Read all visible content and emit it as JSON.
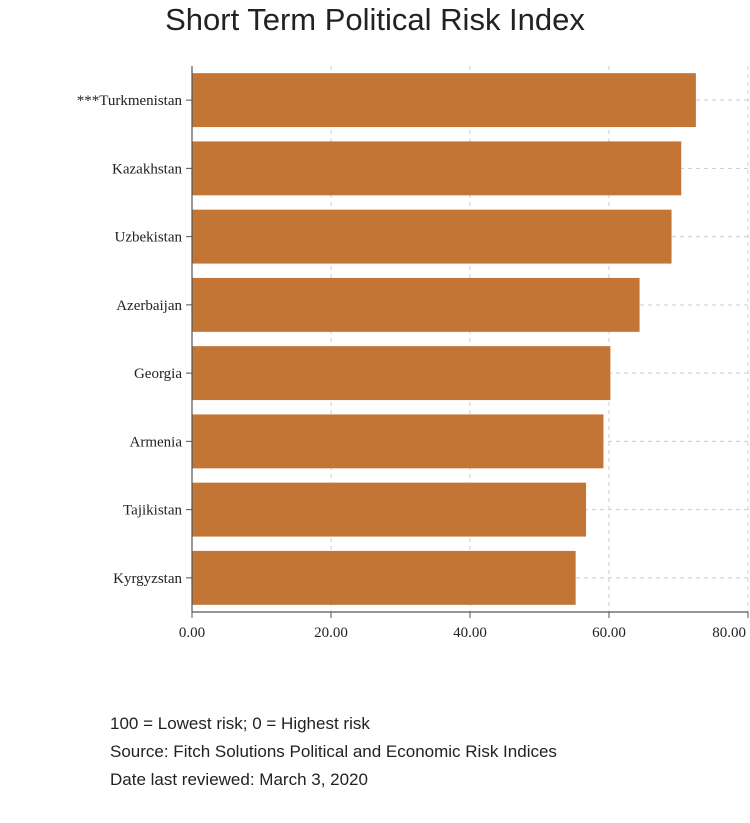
{
  "chart_data": {
    "type": "bar",
    "orientation": "horizontal",
    "title": "Short Term Political Risk Index",
    "categories": [
      "***Turkmenistan",
      "Kazakhstan",
      "Uzbekistan",
      "Azerbaijan",
      "Georgia",
      "Armenia",
      "Tajikistan",
      "Kyrgyzstan"
    ],
    "values": [
      72.5,
      70.4,
      69.0,
      64.4,
      60.2,
      59.2,
      56.7,
      55.2
    ],
    "xlim": [
      0,
      80
    ],
    "xticks": [
      "0.00",
      "20.00",
      "40.00",
      "60.00",
      "80.00"
    ],
    "xlabel": "",
    "ylabel": "",
    "grid": true,
    "bar_color": "#c27535"
  },
  "notes": [
    "100 = Lowest risk; 0 = Highest risk",
    "Source: Fitch Solutions Political and Economic Risk Indices",
    "Date last reviewed: March 3, 2020"
  ]
}
